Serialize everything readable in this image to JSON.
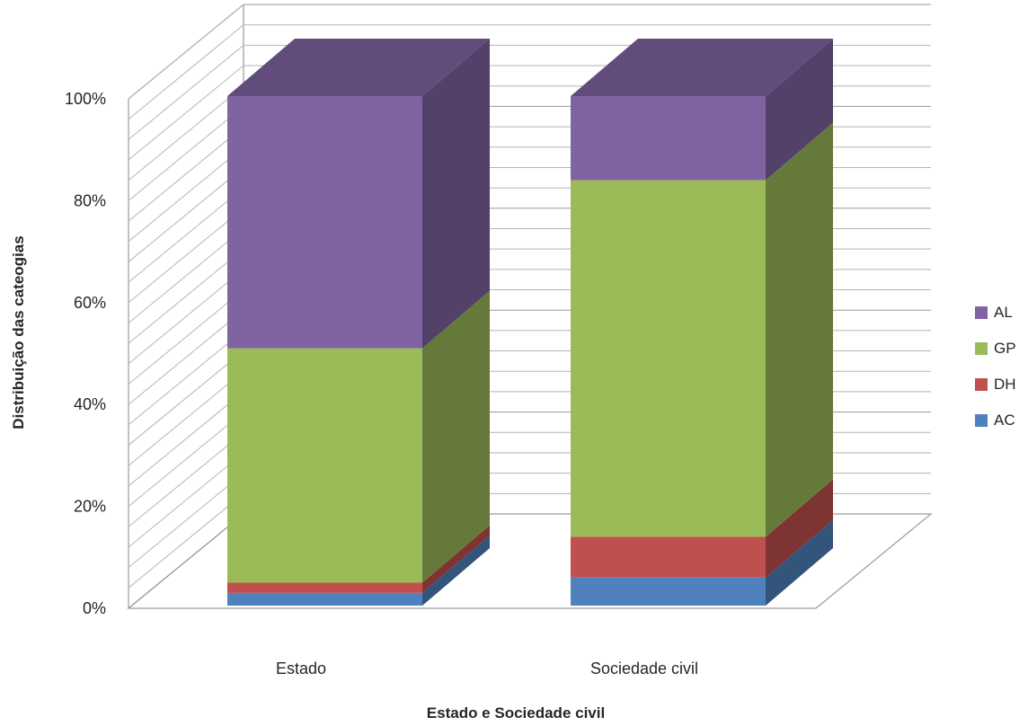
{
  "chart_data": {
    "type": "bar",
    "stacked": true,
    "percent_stacked": true,
    "three_d": true,
    "title": "",
    "xlabel": "Estado e Sociedade civil",
    "ylabel": "Distribuição das cateogias",
    "categories": [
      "Estado",
      "Sociedade civil"
    ],
    "ylim": [
      0,
      100
    ],
    "y_ticks": [
      "0%",
      "20%",
      "40%",
      "60%",
      "80%",
      "100%"
    ],
    "series": [
      {
        "name": "AC",
        "values": [
          2.5,
          5.5
        ],
        "color": "#4f81bd"
      },
      {
        "name": "DH",
        "values": [
          2,
          8
        ],
        "color": "#c0504d"
      },
      {
        "name": "GP",
        "values": [
          46,
          70
        ],
        "color": "#9bbb59"
      },
      {
        "name": "AL",
        "values": [
          49.5,
          16.5
        ],
        "color": "#8064a2"
      }
    ],
    "legend_position": "right",
    "grid": true
  }
}
